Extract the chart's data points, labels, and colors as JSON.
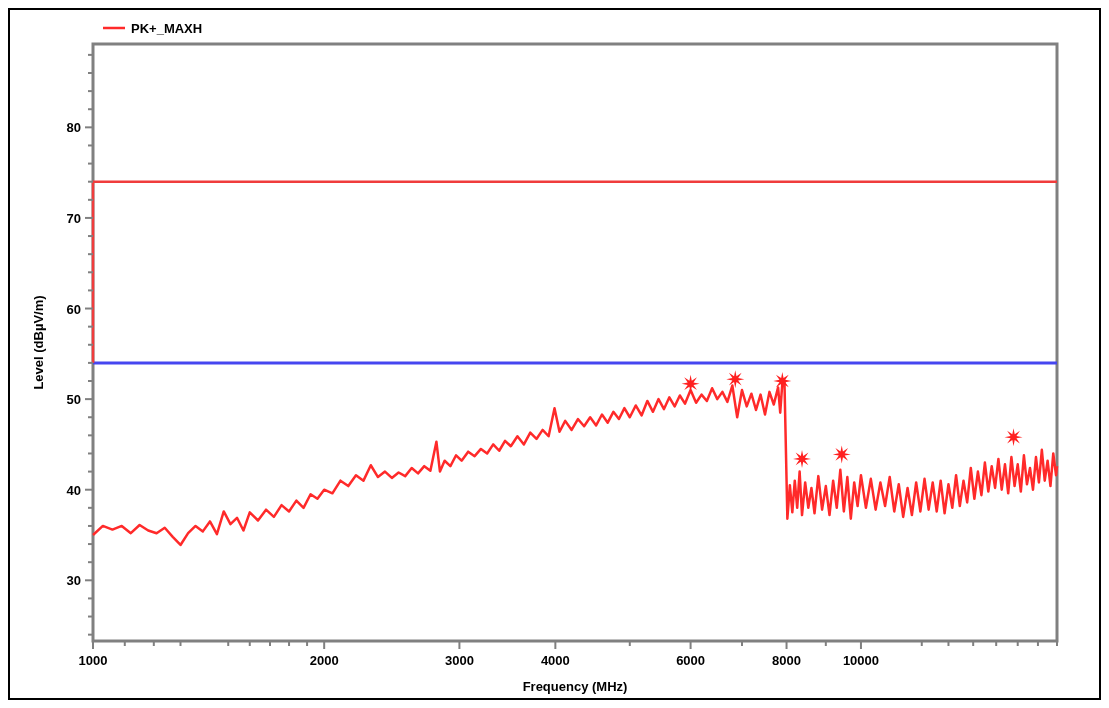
{
  "chart_data": {
    "type": "line",
    "xlabel": "Frequency (MHz)",
    "ylabel": "Level (dBµV/m)",
    "log": "x",
    "xlim": [
      1000,
      18000
    ],
    "ylim": [
      23.3,
      89.2
    ],
    "xticks": [
      1000,
      {
        "value": 1100,
        "label": null
      },
      {
        "value": 1200,
        "label": null
      },
      {
        "value": 1300,
        "label": null
      },
      {
        "value": 1500,
        "label": null
      },
      {
        "value": 1600,
        "label": null
      },
      {
        "value": 1700,
        "label": null
      },
      {
        "value": 1800,
        "label": null
      },
      {
        "value": 1900,
        "label": null
      },
      2000,
      3000,
      4000,
      {
        "value": 5000,
        "label": null
      },
      6000,
      {
        "value": 7000,
        "label": null
      },
      8000,
      {
        "value": 9000,
        "label": null
      },
      10000,
      {
        "value": 12000,
        "label": null
      },
      {
        "value": 13000,
        "label": null
      },
      {
        "value": 14000,
        "label": null
      },
      {
        "value": 15000,
        "label": null
      },
      {
        "value": 16000,
        "label": null
      },
      {
        "value": 17000,
        "label": null
      },
      {
        "value": 18000,
        "label": null
      }
    ],
    "yticks": [
      {
        "value": 24,
        "label": null
      },
      {
        "value": 26,
        "label": null
      },
      {
        "value": 28,
        "label": null
      },
      30,
      {
        "value": 32,
        "label": null
      },
      {
        "value": 34,
        "label": null
      },
      {
        "value": 36,
        "label": null
      },
      {
        "value": 38,
        "label": null
      },
      40,
      {
        "value": 42,
        "label": null
      },
      {
        "value": 44,
        "label": null
      },
      {
        "value": 46,
        "label": null
      },
      {
        "value": 48,
        "label": null
      },
      50,
      {
        "value": 52,
        "label": null
      },
      {
        "value": 54,
        "label": null
      },
      {
        "value": 56,
        "label": null
      },
      {
        "value": 58,
        "label": null
      },
      60,
      {
        "value": 62,
        "label": null
      },
      {
        "value": 64,
        "label": null
      },
      {
        "value": 66,
        "label": null
      },
      {
        "value": 68,
        "label": null
      },
      70,
      {
        "value": 72,
        "label": null
      },
      {
        "value": 74,
        "label": null
      },
      {
        "value": 76,
        "label": null
      },
      {
        "value": 78,
        "label": null
      },
      80,
      {
        "value": 82,
        "label": null
      },
      {
        "value": 84,
        "label": null
      },
      {
        "value": 86,
        "label": null
      },
      {
        "value": 88,
        "label": null
      }
    ],
    "grid": false,
    "legend": "top left",
    "line_style": "solid",
    "ref_lines": [
      {
        "axis": "y",
        "value": 54,
        "label": null,
        "color": "#4646f0"
      }
    ],
    "series": [
      {
        "name": "PK+_MAXH",
        "color": "#ff2a2a",
        "x": [
          1000,
          1030,
          1060,
          1090,
          1120,
          1150,
          1180,
          1210,
          1240,
          1270,
          1300,
          1330,
          1360,
          1390,
          1420,
          1450,
          1480,
          1510,
          1540,
          1570,
          1600,
          1640,
          1680,
          1720,
          1760,
          1800,
          1840,
          1880,
          1920,
          1960,
          2000,
          2050,
          2100,
          2150,
          2200,
          2250,
          2300,
          2350,
          2400,
          2450,
          2500,
          2550,
          2600,
          2650,
          2700,
          2750,
          2800,
          2830,
          2870,
          2920,
          2970,
          3020,
          3080,
          3140,
          3200,
          3260,
          3320,
          3380,
          3440,
          3500,
          3570,
          3640,
          3710,
          3780,
          3850,
          3920,
          3990,
          4050,
          4120,
          4200,
          4280,
          4360,
          4440,
          4520,
          4600,
          4680,
          4760,
          4840,
          4920,
          5000,
          5090,
          5180,
          5270,
          5360,
          5450,
          5540,
          5630,
          5720,
          5810,
          5900,
          6000,
          6100,
          6200,
          6300,
          6400,
          6500,
          6600,
          6700,
          6800,
          6900,
          7000,
          7100,
          7200,
          7300,
          7400,
          7500,
          7600,
          7700,
          7800,
          7850,
          7900,
          7950,
          8020,
          8080,
          8140,
          8200,
          8260,
          8320,
          8380,
          8460,
          8540,
          8620,
          8700,
          8800,
          8900,
          9000,
          9100,
          9200,
          9300,
          9400,
          9500,
          9600,
          9700,
          9800,
          9900,
          10000,
          10150,
          10300,
          10450,
          10600,
          10750,
          10900,
          11050,
          11200,
          11350,
          11500,
          11650,
          11800,
          11950,
          12100,
          12250,
          12400,
          12550,
          12700,
          12850,
          13000,
          13150,
          13300,
          13450,
          13600,
          13750,
          13900,
          14050,
          14200,
          14350,
          14500,
          14650,
          14800,
          14950,
          15100,
          15250,
          15400,
          15550,
          15700,
          15850,
          16000,
          16150,
          16300,
          16450,
          16600,
          16750,
          16900,
          17050,
          17200,
          17350,
          17500,
          17650,
          17800,
          17950,
          18000
        ],
        "values": [
          35.0,
          36.0,
          35.6,
          36.0,
          35.2,
          36.1,
          35.5,
          35.2,
          35.8,
          34.8,
          33.9,
          35.2,
          36.0,
          35.4,
          36.5,
          35.1,
          37.6,
          36.2,
          36.9,
          35.5,
          37.5,
          36.6,
          37.8,
          37.0,
          38.3,
          37.6,
          38.8,
          38.0,
          39.5,
          39.0,
          40.0,
          39.6,
          41.0,
          40.4,
          41.6,
          41.0,
          42.7,
          41.4,
          42.0,
          41.3,
          41.9,
          41.5,
          42.4,
          41.8,
          42.6,
          42.1,
          45.3,
          42.0,
          43.2,
          42.6,
          43.8,
          43.2,
          44.2,
          43.7,
          44.5,
          44.0,
          45.0,
          44.3,
          45.4,
          44.8,
          45.9,
          45.0,
          46.3,
          45.6,
          46.6,
          45.9,
          49.0,
          46.4,
          47.6,
          46.6,
          47.8,
          47.0,
          48.0,
          47.1,
          48.3,
          47.4,
          48.6,
          47.8,
          49.0,
          48.0,
          49.3,
          48.2,
          49.8,
          48.6,
          50.0,
          48.9,
          50.2,
          49.2,
          50.4,
          49.5,
          51.0,
          49.6,
          50.5,
          49.8,
          51.2,
          50.0,
          50.8,
          49.7,
          51.5,
          48.0,
          51.0,
          49.2,
          50.6,
          48.8,
          50.5,
          48.3,
          50.8,
          49.4,
          51.3,
          48.5,
          51.8,
          52.0,
          36.8,
          40.5,
          37.5,
          41.0,
          38.0,
          42.0,
          37.2,
          40.8,
          38.0,
          40.2,
          37.4,
          41.5,
          37.8,
          40.4,
          37.2,
          41.0,
          38.0,
          42.2,
          37.6,
          41.4,
          36.8,
          40.8,
          38.2,
          41.6,
          38.0,
          41.2,
          37.8,
          40.8,
          38.2,
          41.4,
          37.6,
          40.6,
          37.0,
          40.2,
          37.2,
          40.8,
          37.6,
          41.2,
          37.8,
          40.8,
          37.6,
          41.0,
          37.4,
          40.6,
          38.0,
          41.6,
          38.2,
          41.0,
          38.6,
          42.4,
          39.0,
          42.0,
          39.4,
          43.0,
          39.8,
          42.6,
          40.2,
          43.4,
          40.0,
          42.8,
          39.6,
          43.6,
          40.4,
          42.8,
          39.8,
          43.8,
          40.6,
          42.4,
          40.0,
          43.6,
          40.8,
          44.4,
          41.0,
          43.2,
          40.4,
          44.0,
          41.6,
          42.6
        ]
      },
      {
        "type": "line",
        "color": "#f03c3c",
        "x": [
          1000,
          1000,
          18000
        ],
        "values": [
          54,
          74,
          74
        ]
      },
      {
        "type": "scatter",
        "color": "#ff2020",
        "marker": "star",
        "x": [
          6000,
          6860,
          7900,
          8380,
          9440,
          15800
        ],
        "values": [
          51.7,
          52.2,
          52.0,
          43.4,
          43.9,
          45.8
        ]
      }
    ]
  }
}
